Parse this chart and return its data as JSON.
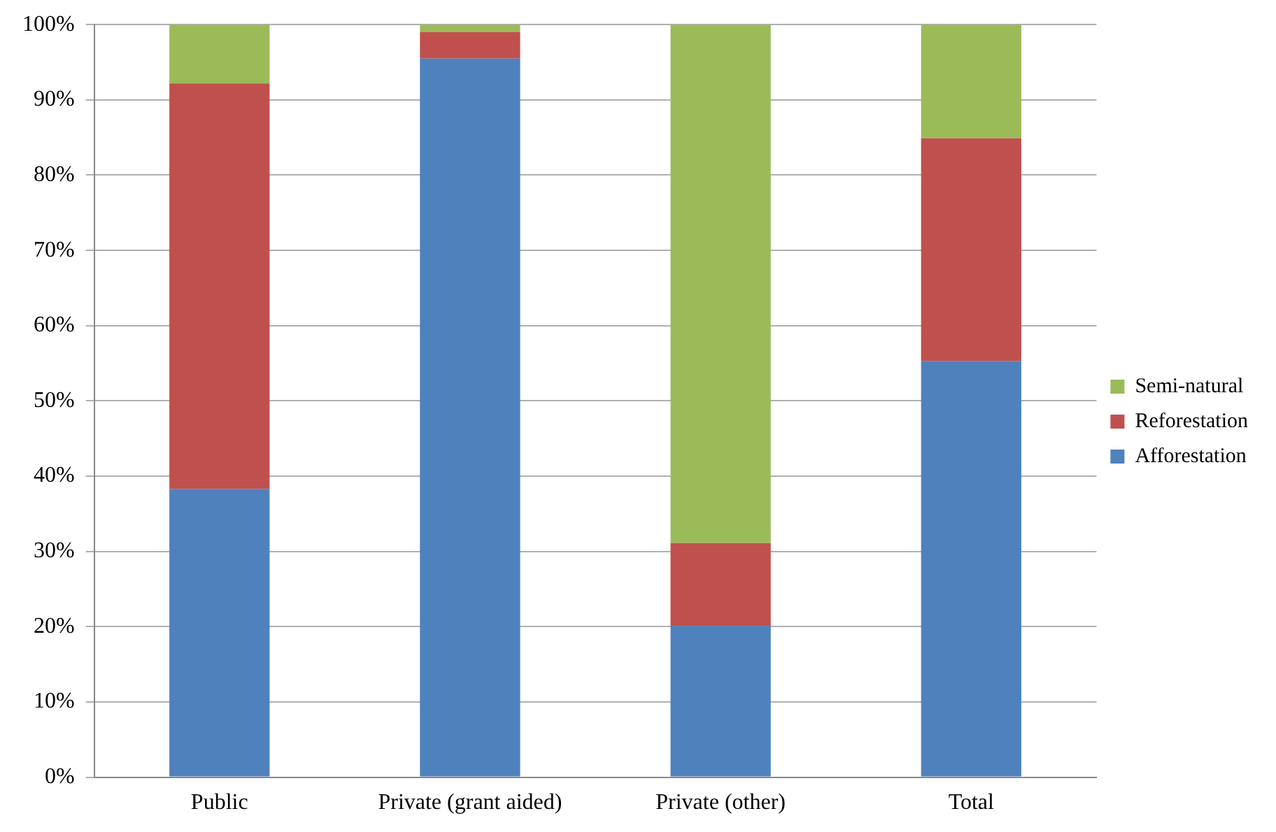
{
  "chart_data": {
    "type": "bar",
    "stacked": true,
    "categories": [
      "Public",
      "Private (grant aided)",
      "Private (other)",
      "Total"
    ],
    "series": [
      {
        "name": "Afforestation",
        "color": "#4f81bd",
        "values": [
          38.3,
          95.5,
          20.1,
          55.3
        ]
      },
      {
        "name": "Reforestation",
        "color": "#c0504d",
        "values": [
          53.9,
          3.5,
          11.0,
          29.6
        ]
      },
      {
        "name": "Semi-natural",
        "color": "#9bbb59",
        "values": [
          7.8,
          1.0,
          68.9,
          15.1
        ]
      }
    ],
    "ylim": [
      0,
      100
    ],
    "yticks": [
      {
        "value": 0,
        "label": "0%"
      },
      {
        "value": 10,
        "label": "10%"
      },
      {
        "value": 20,
        "label": "20%"
      },
      {
        "value": 30,
        "label": "30%"
      },
      {
        "value": 40,
        "label": "40%"
      },
      {
        "value": 50,
        "label": "50%"
      },
      {
        "value": 60,
        "label": "60%"
      },
      {
        "value": 70,
        "label": "70%"
      },
      {
        "value": 80,
        "label": "80%"
      },
      {
        "value": 90,
        "label": "90%"
      },
      {
        "value": 100,
        "label": "100%"
      }
    ],
    "grid": "y",
    "legend": "right"
  }
}
